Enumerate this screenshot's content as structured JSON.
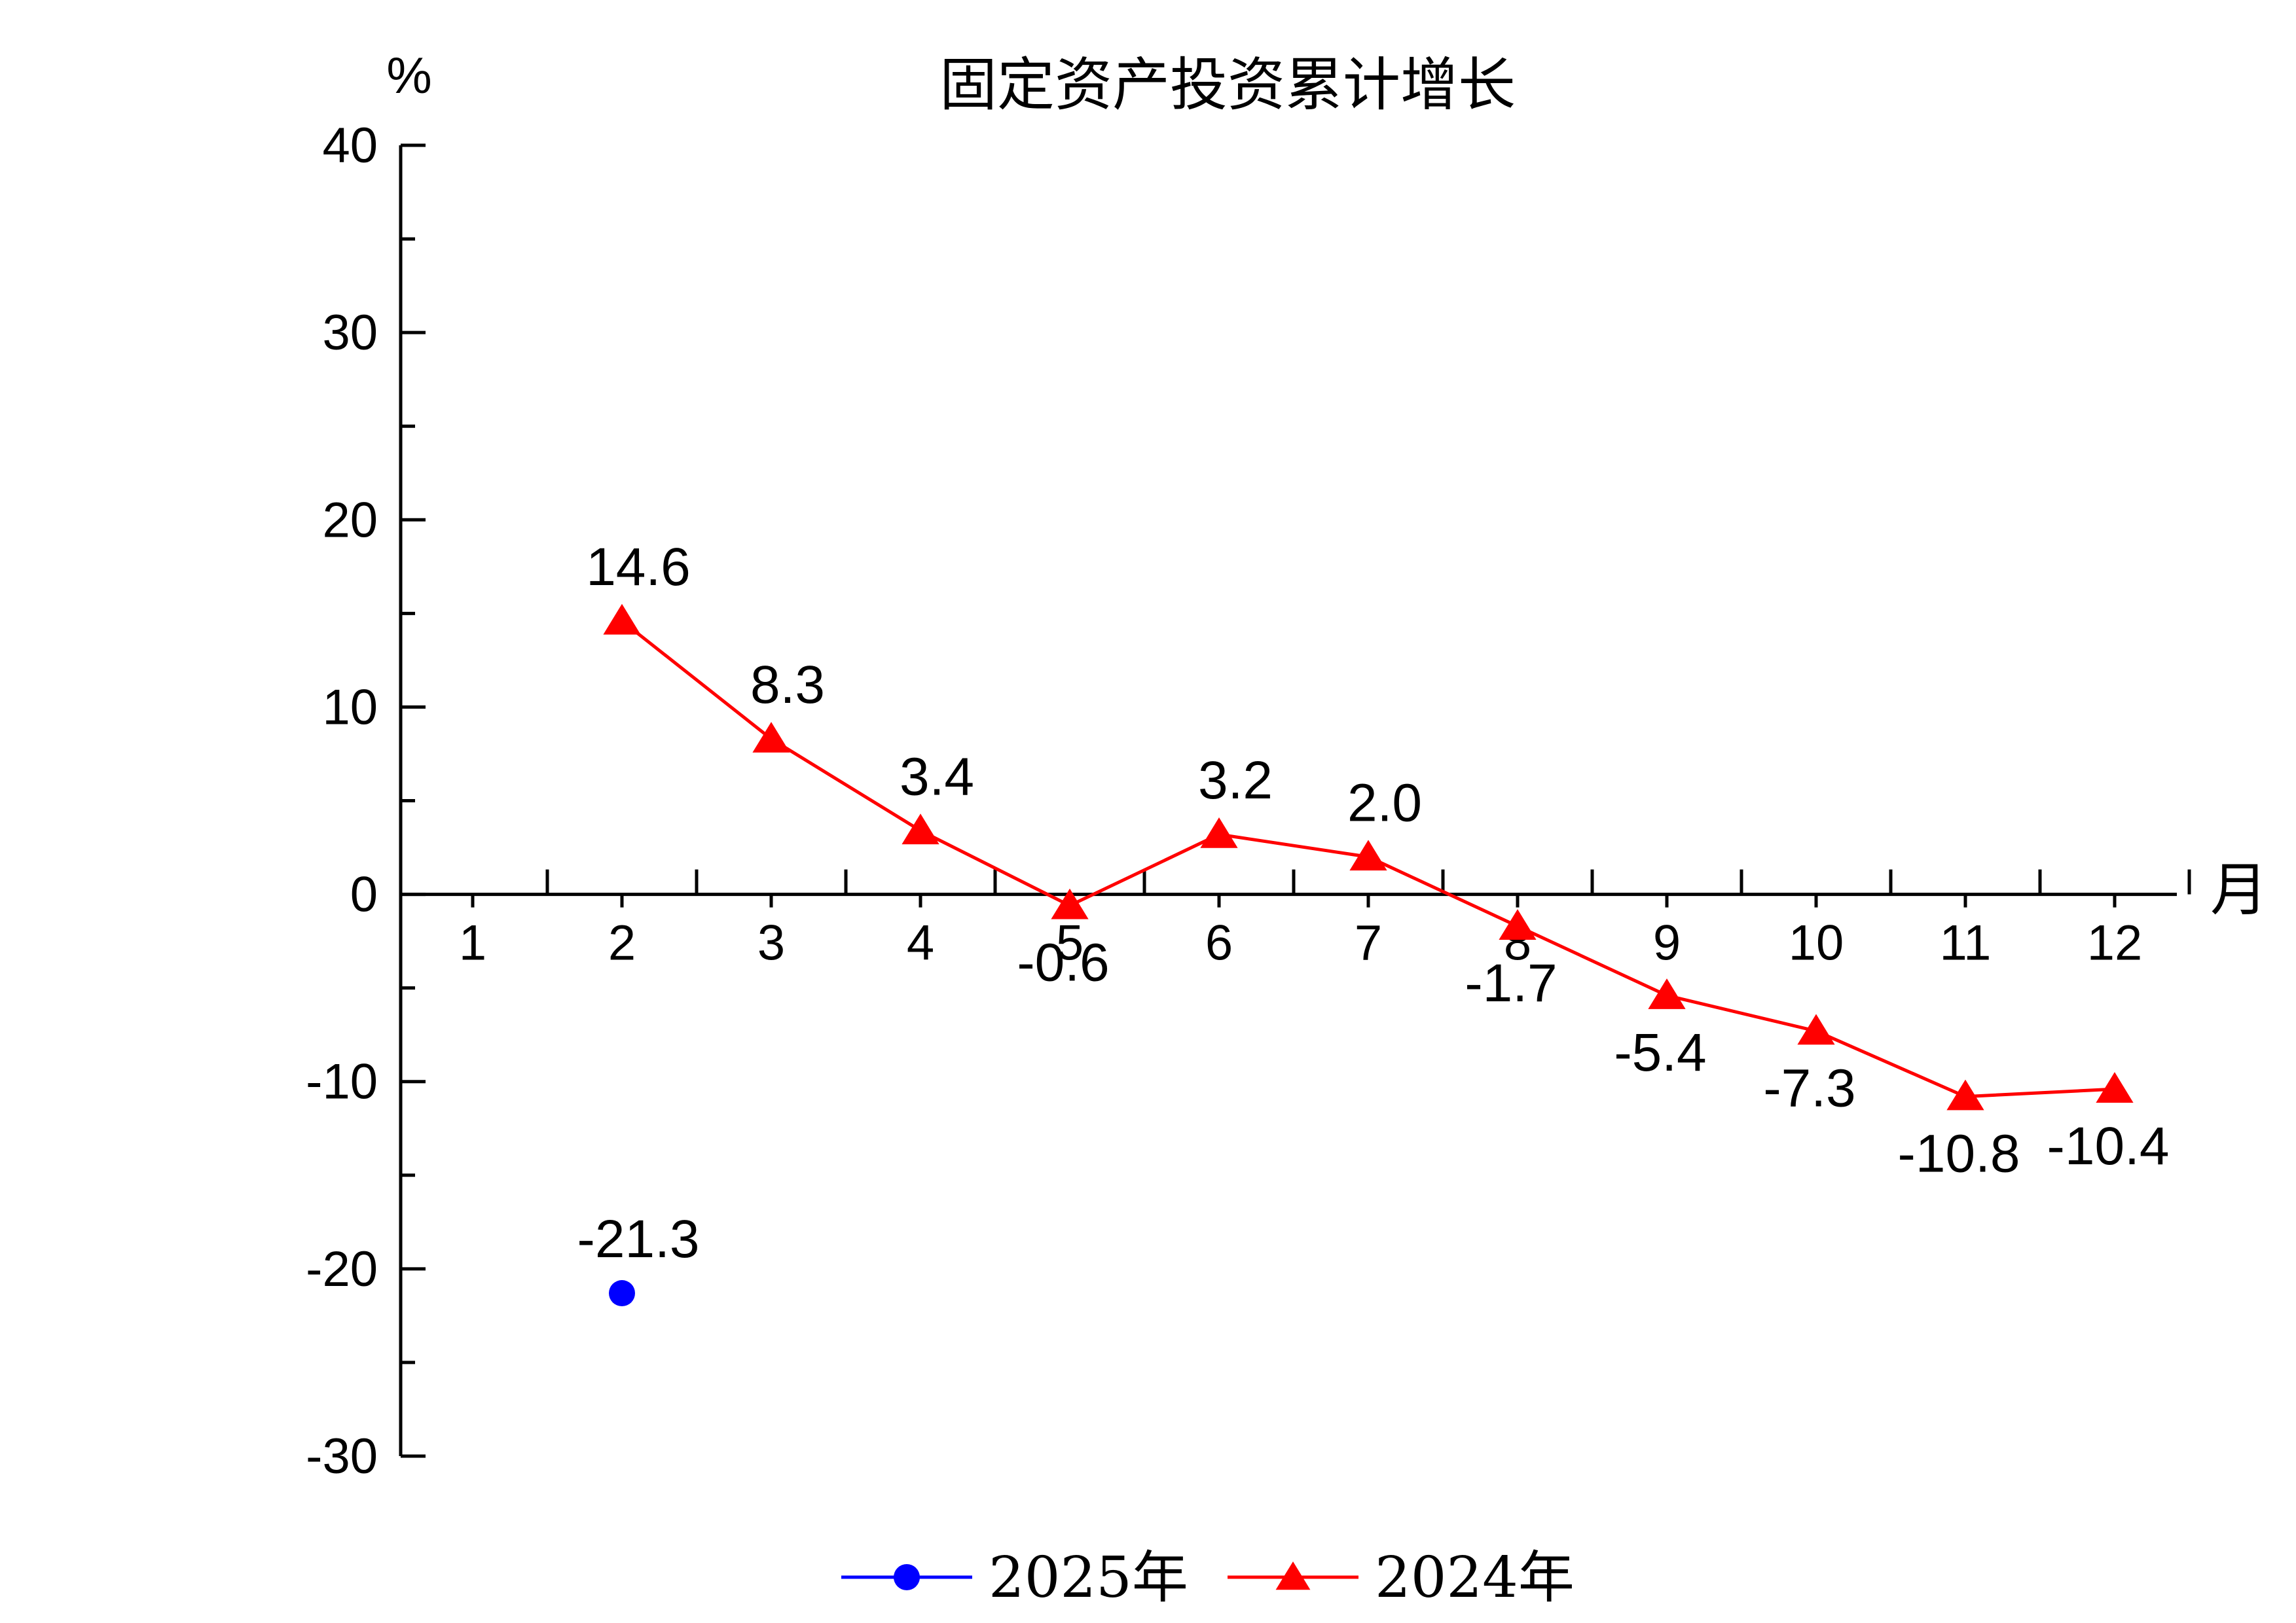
{
  "chart_data": {
    "type": "line",
    "title": "固定资产投资累计增长",
    "ylabel": "%",
    "xlabel": "月",
    "categories": [
      "1",
      "2",
      "3",
      "4",
      "5",
      "6",
      "7",
      "8",
      "9",
      "10",
      "11",
      "12"
    ],
    "ylim": [
      -30,
      40
    ],
    "yticks": [
      "40",
      "30",
      "20",
      "10",
      "0",
      "-10",
      "-20",
      "-30"
    ],
    "grid": false,
    "legend_position": "bottom-center",
    "series": [
      {
        "name": "2025年",
        "color": "#0000ff",
        "marker": "circle",
        "values": [
          null,
          -21.3,
          null,
          null,
          null,
          null,
          null,
          null,
          null,
          null,
          null,
          null
        ],
        "labels": [
          "",
          "-21.3",
          "",
          "",
          "",
          "",
          "",
          "",
          "",
          "",
          "",
          ""
        ]
      },
      {
        "name": "2024年",
        "color": "#ff0000",
        "marker": "triangle",
        "values": [
          null,
          14.6,
          8.3,
          3.4,
          -0.6,
          3.2,
          2.0,
          -1.7,
          -5.4,
          -7.3,
          -10.8,
          -10.4
        ],
        "labels": [
          "",
          "14.6",
          "8.3",
          "3.4",
          "-0.6",
          "3.2",
          "2.0",
          "-1.7",
          "-5.4",
          "-7.3",
          "-10.8",
          "-10.4"
        ]
      }
    ]
  }
}
